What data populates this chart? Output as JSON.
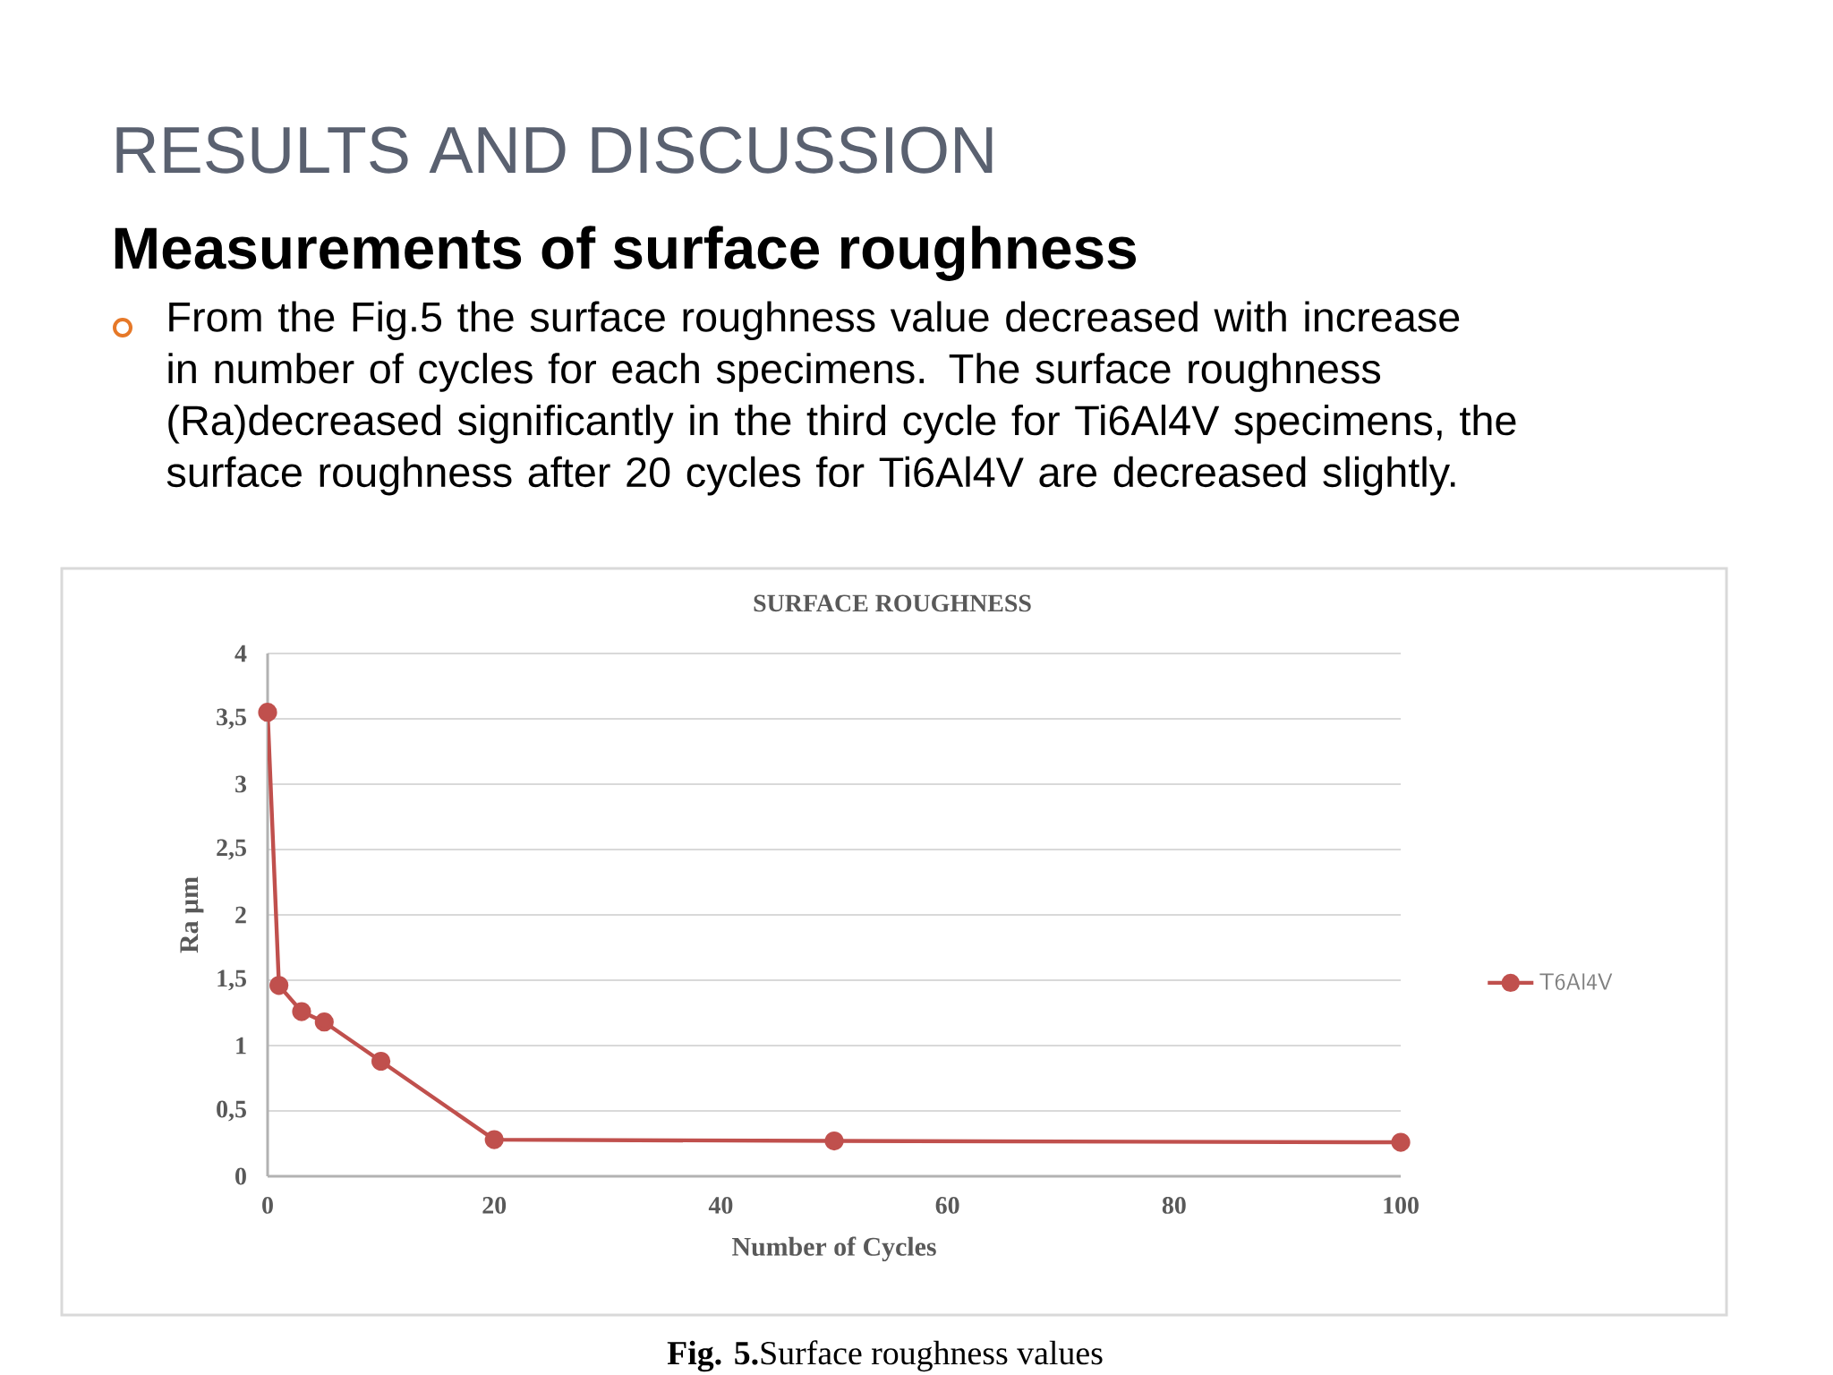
{
  "chart_data": {
    "type": "line",
    "title": "SURFACE ROUGHNESS",
    "xlabel": "Number of Cycles",
    "ylabel": "Ra µm",
    "annotations": [
      "RESULTS AND DISCUSSION",
      "Measurements of surface roughness",
      "From the Fig.5 the surface roughness value decreased with increase in number of cycles for each specimens. The surface roughness (Ra)decreased significantly in the third cycle for Ti6Al4V specimens, the surface roughness after 20 cycles for Ti6Al4V are decreased slightly.",
      "**Fig. 5.**Surface roughness values"
    ],
    "x": [
      0,
      1,
      3,
      5,
      10,
      20,
      50,
      100
    ],
    "series": [
      {
        "name": "T6Al4V",
        "color": "#c0504d",
        "values": [
          3.55,
          1.46,
          1.26,
          1.18,
          0.88,
          0.28,
          0.27,
          0.26
        ]
      }
    ],
    "xlim": [
      0,
      100
    ],
    "xticks": [
      0,
      20,
      40,
      60,
      80,
      100
    ],
    "ylim": [
      0,
      4
    ],
    "yticks": [
      0,
      {
        "value": 0.5,
        "label": "0,5"
      },
      1,
      {
        "value": 1.5,
        "label": "1,5"
      },
      2,
      {
        "value": 2.5,
        "label": "2,5"
      },
      3,
      {
        "value": 3.5,
        "label": "3,5"
      },
      4
    ],
    "grid": "y",
    "legend": "right",
    "marker": "circle",
    "line_style": "solid"
  }
}
